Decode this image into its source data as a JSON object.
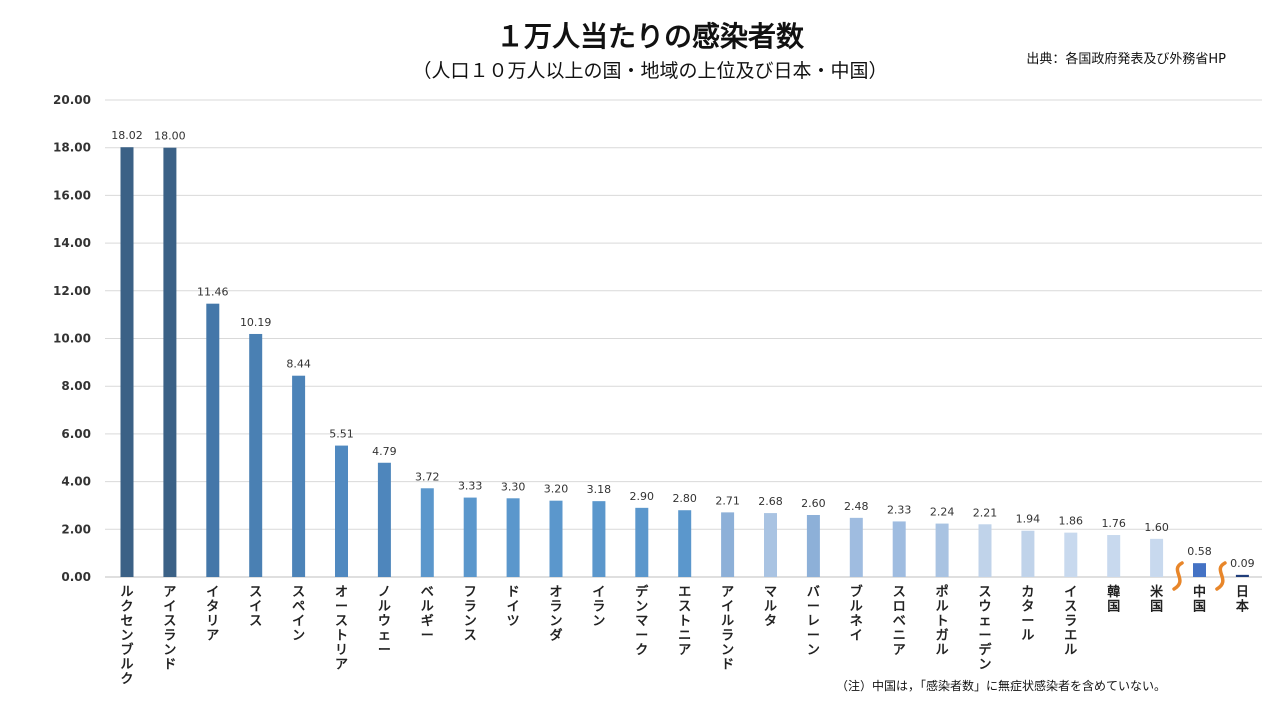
{
  "chart_data": {
    "type": "bar",
    "title": "１万人当たりの感染者数",
    "subtitle": "（人口１０万人以上の国・地域の上位及び日本・中国）",
    "source": "出典：各国政府発表及び外務省HP",
    "note": "（注）中国は，「感染者数」に無症状感染者を含めていない。",
    "xlabel": "",
    "ylabel": "",
    "ylim": [
      0,
      20
    ],
    "yticks": [
      "0.00",
      "2.00",
      "4.00",
      "6.00",
      "8.00",
      "10.00",
      "12.00",
      "14.00",
      "16.00",
      "18.00",
      "20.00"
    ],
    "grid": true,
    "legend": "none",
    "categories": [
      "ルクセンブルク",
      "アイスランド",
      "イタリア",
      "スイス",
      "スペイン",
      "オーストリア",
      "ノルウェー",
      "ベルギー",
      "フランス",
      "ドイツ",
      "オランダ",
      "イラン",
      "デンマーク",
      "エストニア",
      "アイルランド",
      "マルタ",
      "バーレーン",
      "ブルネイ",
      "スロベニア",
      "ポルトガル",
      "スウェーデン",
      "カタール",
      "イスラエル",
      "韓国",
      "米国",
      "中国",
      "日本"
    ],
    "values": [
      18.02,
      18.0,
      11.46,
      10.19,
      8.44,
      5.51,
      4.79,
      3.72,
      3.33,
      3.3,
      3.2,
      3.18,
      2.9,
      2.8,
      2.71,
      2.68,
      2.6,
      2.48,
      2.33,
      2.24,
      2.21,
      1.94,
      1.86,
      1.76,
      1.6,
      0.58,
      0.09
    ],
    "value_labels": [
      "18.02",
      "18.00",
      "11.46",
      "10.19",
      "8.44",
      "5.51",
      "4.79",
      "3.72",
      "3.33",
      "3.30",
      "3.20",
      "3.18",
      "2.90",
      "2.80",
      "2.71",
      "2.68",
      "2.60",
      "2.48",
      "2.33",
      "2.24",
      "2.21",
      "1.94",
      "1.86",
      "1.76",
      "1.60",
      "0.58",
      "0.09"
    ],
    "colors": [
      "#3b6186",
      "#3b6186",
      "#4477a9",
      "#4a80b3",
      "#4c83b8",
      "#5089c0",
      "#4e86bc",
      "#5b97cc",
      "#5b97cc",
      "#5b97cc",
      "#5b97cc",
      "#5b97cc",
      "#5b97cc",
      "#5b97cc",
      "#8db0d8",
      "#a9c3e2",
      "#8db0d8",
      "#9fbce0",
      "#9fbce0",
      "#a9c3e2",
      "#c0d3ea",
      "#c0d3ea",
      "#c8d9ee",
      "#c8d9ee",
      "#c8d9ee",
      "#4472c4",
      "#1f3d7a"
    ],
    "axis_break_before": [
      "中国",
      "日本"
    ]
  }
}
